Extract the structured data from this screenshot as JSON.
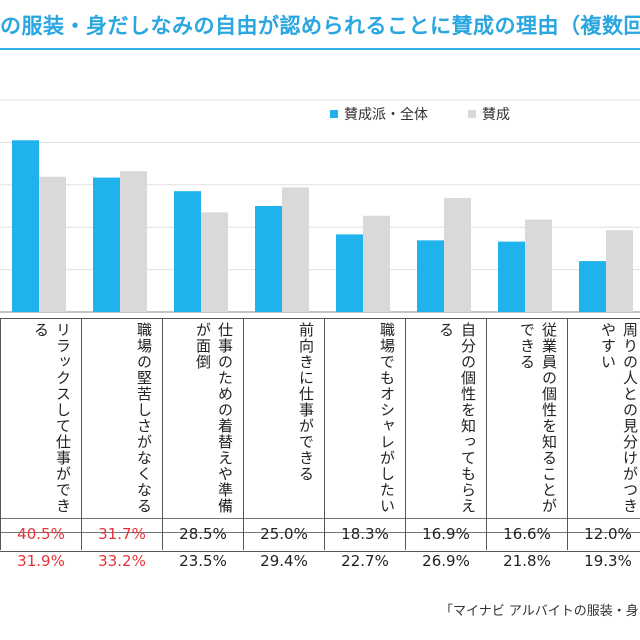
{
  "title": "の服装・身だしなみの自由が認められることに賛成の理由（複数回",
  "source": "「マイナビ アルバイトの服装・身",
  "colors": {
    "blue": "#1fb2ec",
    "gray": "#d9d9d9",
    "highlight": "#e8323a"
  },
  "chart_data": {
    "type": "bar",
    "categories": [
      "リラックスして仕事ができる",
      "職場の堅苦しさがなくなる",
      "仕事のための着替えや準備が面倒",
      "前向きに仕事ができる",
      "職場でもオシャレがしたい",
      "自分の個性を知ってもらえる",
      "従業員の個性を知ることができる",
      "周りの人との見分けがつきやすい"
    ],
    "series": [
      {
        "name": "賛成派・全体",
        "values": [
          40.5,
          31.7,
          28.5,
          25.0,
          18.3,
          16.9,
          16.6,
          12.0
        ],
        "labels": [
          "40.5%",
          "31.7%",
          "28.5%",
          "25.0%",
          "18.3%",
          "16.9%",
          "16.6%",
          "12.0%"
        ]
      },
      {
        "name": "賛成",
        "values": [
          31.9,
          33.2,
          23.5,
          29.4,
          22.7,
          26.9,
          21.8,
          19.3
        ],
        "labels": [
          "31.9%",
          "33.2%",
          "23.5%",
          "29.4%",
          "22.7%",
          "26.9%",
          "21.8%",
          "19.3%"
        ]
      }
    ],
    "highlight_columns": [
      0,
      1
    ],
    "ylim": [
      0,
      50
    ],
    "legend": "top-right",
    "grid": true
  }
}
